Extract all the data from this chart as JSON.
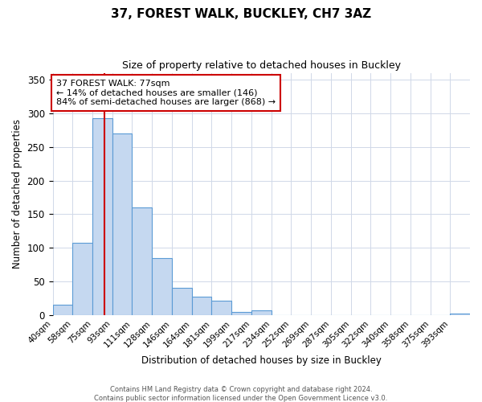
{
  "title": "37, FOREST WALK, BUCKLEY, CH7 3AZ",
  "subtitle": "Size of property relative to detached houses in Buckley",
  "xlabel": "Distribution of detached houses by size in Buckley",
  "ylabel": "Number of detached properties",
  "footer_line1": "Contains HM Land Registry data © Crown copyright and database right 2024.",
  "footer_line2": "Contains public sector information licensed under the Open Government Licence v3.0.",
  "bar_labels": [
    "40sqm",
    "58sqm",
    "75sqm",
    "93sqm",
    "111sqm",
    "128sqm",
    "146sqm",
    "164sqm",
    "181sqm",
    "199sqm",
    "217sqm",
    "234sqm",
    "252sqm",
    "269sqm",
    "287sqm",
    "305sqm",
    "322sqm",
    "340sqm",
    "358sqm",
    "375sqm",
    "393sqm"
  ],
  "bar_values": [
    16,
    108,
    293,
    270,
    160,
    85,
    40,
    28,
    21,
    5,
    7,
    0,
    0,
    0,
    0,
    0,
    0,
    0,
    0,
    0,
    2
  ],
  "bar_color": "#c5d8f0",
  "bar_edge_color": "#5b9bd5",
  "grid_color": "#d0d8e8",
  "background_color": "#ffffff",
  "property_line_color": "#cc0000",
  "annotation_line1": "37 FOREST WALK: 77sqm",
  "annotation_line2": "← 14% of detached houses are smaller (146)",
  "annotation_line3": "84% of semi-detached houses are larger (868) →",
  "annotation_box_color": "#ffffff",
  "annotation_box_edge_color": "#cc0000",
  "ylim": [
    0,
    360
  ],
  "yticks": [
    0,
    50,
    100,
    150,
    200,
    250,
    300,
    350
  ],
  "bin_width": 18,
  "num_bins": 21
}
